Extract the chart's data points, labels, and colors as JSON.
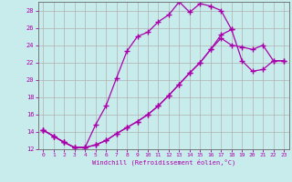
{
  "xlabel": "Windchill (Refroidissement éolien,°C)",
  "bg_color": "#c8ecec",
  "grid_color": "#b0b0b0",
  "line_color": "#aa00aa",
  "xlim": [
    -0.5,
    23.5
  ],
  "ylim": [
    12,
    29
  ],
  "yticks": [
    12,
    14,
    16,
    18,
    20,
    22,
    24,
    26,
    28
  ],
  "xticks": [
    0,
    1,
    2,
    3,
    4,
    5,
    6,
    7,
    8,
    9,
    10,
    11,
    12,
    13,
    14,
    15,
    16,
    17,
    18,
    19,
    20,
    21,
    22,
    23
  ],
  "line1_x": [
    0,
    1,
    2,
    3,
    4,
    5,
    6,
    7,
    8,
    9,
    10,
    11,
    12,
    13,
    14,
    15,
    16,
    17,
    18
  ],
  "line1_y": [
    14.2,
    13.5,
    12.8,
    12.2,
    12.2,
    14.8,
    17.0,
    20.2,
    23.3,
    25.0,
    25.5,
    26.7,
    27.5,
    29.0,
    27.8,
    28.8,
    28.5,
    28.0,
    25.8
  ],
  "line2_x": [
    0,
    1,
    2,
    3,
    4,
    5,
    6,
    7,
    8,
    9,
    10,
    11,
    12,
    13,
    14,
    15,
    16,
    17,
    18,
    19,
    20,
    21,
    22,
    23
  ],
  "line2_y": [
    14.2,
    13.5,
    12.8,
    12.2,
    12.2,
    12.5,
    13.0,
    13.8,
    14.5,
    15.2,
    16.0,
    17.0,
    18.2,
    19.5,
    20.8,
    22.0,
    23.5,
    25.2,
    25.8,
    22.2,
    21.0,
    21.2,
    22.2,
    22.2
  ],
  "line3_x": [
    0,
    1,
    2,
    3,
    4,
    5,
    6,
    7,
    8,
    9,
    10,
    11,
    12,
    13,
    14,
    15,
    16,
    17,
    18,
    19,
    20,
    21,
    22,
    23
  ],
  "line3_y": [
    14.2,
    13.5,
    12.8,
    12.2,
    12.2,
    12.5,
    13.0,
    13.8,
    14.5,
    15.2,
    16.0,
    17.0,
    18.2,
    19.5,
    20.8,
    22.0,
    23.5,
    24.8,
    24.0,
    23.8,
    23.5,
    24.0,
    22.2,
    22.2
  ]
}
